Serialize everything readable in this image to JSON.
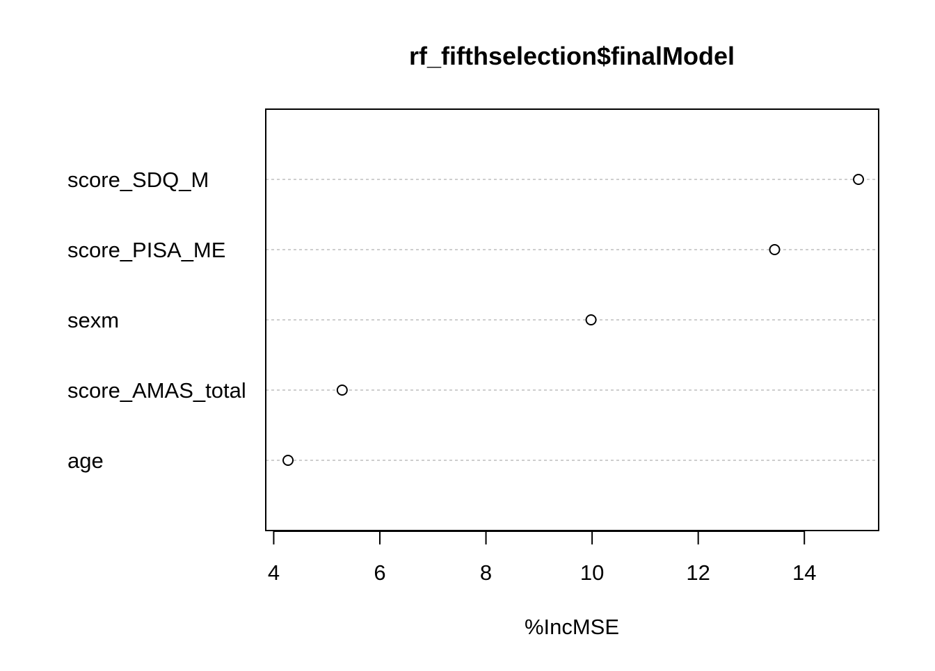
{
  "chart_data": {
    "type": "scatter",
    "title": "rf_fifthselection$finalModel",
    "xlabel": "%IncMSE",
    "ylabel": "",
    "categories": [
      "score_SDQ_M",
      "score_PISA_ME",
      "sexm",
      "score_AMAS_total",
      "age"
    ],
    "values": [
      15.02,
      13.44,
      9.98,
      5.29,
      4.27
    ],
    "xlim": [
      3.85,
      15.4
    ],
    "xticks": [
      4,
      6,
      8,
      10,
      12,
      14
    ],
    "grid": "dotted horizontal per category",
    "legend": "none",
    "colors": {
      "point_stroke": "#000000",
      "grid": "#bebebe",
      "frame": "#000000"
    }
  }
}
